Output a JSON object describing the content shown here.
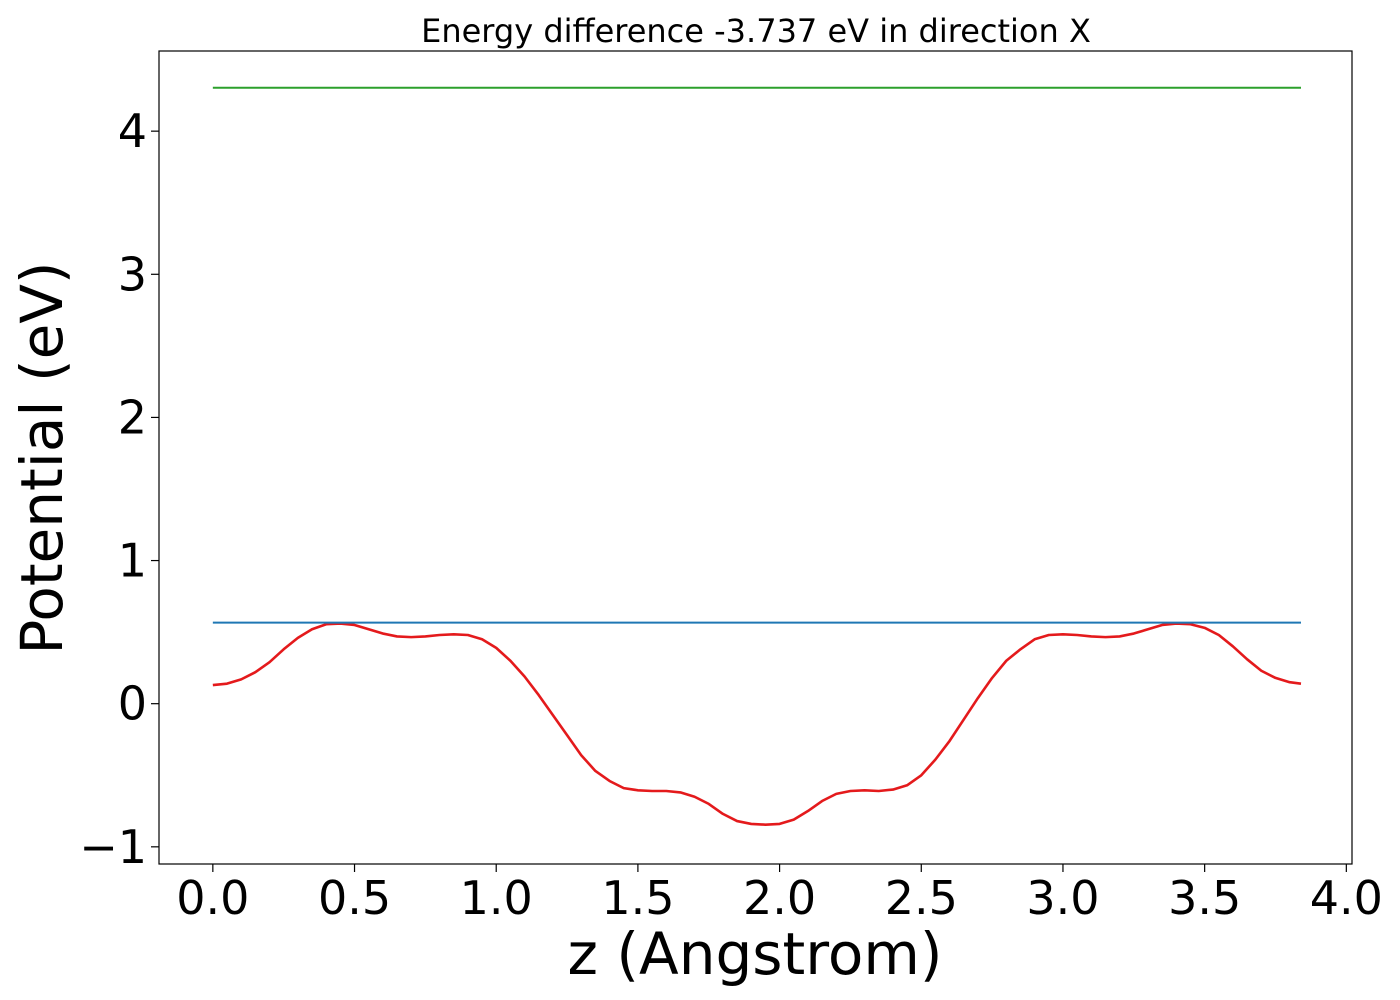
{
  "chart_data": {
    "type": "line",
    "title": "Energy difference -3.737 eV in direction X",
    "xlabel": "z (Angstrom)",
    "ylabel": "Potential (eV)",
    "xlim": [
      -0.19,
      4.02
    ],
    "ylim": [
      -1.12,
      4.56
    ],
    "xticks": [
      0.0,
      0.5,
      1.0,
      1.5,
      2.0,
      2.5,
      3.0,
      3.5,
      4.0
    ],
    "xtick_labels": [
      "0.0",
      "0.5",
      "1.0",
      "1.5",
      "2.0",
      "2.5",
      "3.0",
      "3.5",
      "4.0"
    ],
    "yticks": [
      -1,
      0,
      1,
      2,
      3,
      4
    ],
    "ytick_labels": [
      "−1",
      "0",
      "1",
      "2",
      "3",
      "4"
    ],
    "grid": false,
    "series": [
      {
        "color": "#e41a1c",
        "x": [
          0.0,
          0.05,
          0.1,
          0.15,
          0.2,
          0.25,
          0.3,
          0.35,
          0.4,
          0.45,
          0.5,
          0.55,
          0.6,
          0.65,
          0.7,
          0.75,
          0.8,
          0.85,
          0.9,
          0.95,
          1.0,
          1.05,
          1.1,
          1.15,
          1.2,
          1.25,
          1.3,
          1.35,
          1.4,
          1.45,
          1.5,
          1.55,
          1.6,
          1.65,
          1.7,
          1.75,
          1.8,
          1.85,
          1.9,
          1.95,
          2.0,
          2.05,
          2.1,
          2.15,
          2.2,
          2.25,
          2.3,
          2.35,
          2.4,
          2.45,
          2.5,
          2.55,
          2.6,
          2.65,
          2.7,
          2.75,
          2.8,
          2.85,
          2.9,
          2.95,
          3.0,
          3.05,
          3.1,
          3.15,
          3.2,
          3.25,
          3.3,
          3.35,
          3.4,
          3.45,
          3.5,
          3.55,
          3.6,
          3.65,
          3.7,
          3.75,
          3.8,
          3.84
        ],
        "y": [
          0.13,
          0.14,
          0.17,
          0.22,
          0.29,
          0.38,
          0.46,
          0.52,
          0.555,
          0.56,
          0.55,
          0.52,
          0.49,
          0.47,
          0.465,
          0.47,
          0.48,
          0.485,
          0.48,
          0.45,
          0.39,
          0.3,
          0.19,
          0.06,
          -0.08,
          -0.22,
          -0.36,
          -0.47,
          -0.54,
          -0.59,
          -0.605,
          -0.61,
          -0.61,
          -0.62,
          -0.65,
          -0.7,
          -0.77,
          -0.82,
          -0.84,
          -0.845,
          -0.84,
          -0.81,
          -0.75,
          -0.68,
          -0.63,
          -0.61,
          -0.605,
          -0.61,
          -0.6,
          -0.57,
          -0.5,
          -0.39,
          -0.26,
          -0.11,
          0.04,
          0.18,
          0.3,
          0.38,
          0.45,
          0.48,
          0.485,
          0.48,
          0.47,
          0.465,
          0.47,
          0.49,
          0.52,
          0.55,
          0.56,
          0.555,
          0.53,
          0.48,
          0.4,
          0.31,
          0.23,
          0.18,
          0.15,
          0.14
        ]
      },
      {
        "color": "#1f77b4",
        "x": [
          0.0,
          3.84
        ],
        "y": [
          0.566,
          0.566
        ]
      },
      {
        "color": "#2ca02c",
        "x": [
          0.0,
          3.84
        ],
        "y": [
          4.303,
          4.303
        ]
      }
    ]
  }
}
